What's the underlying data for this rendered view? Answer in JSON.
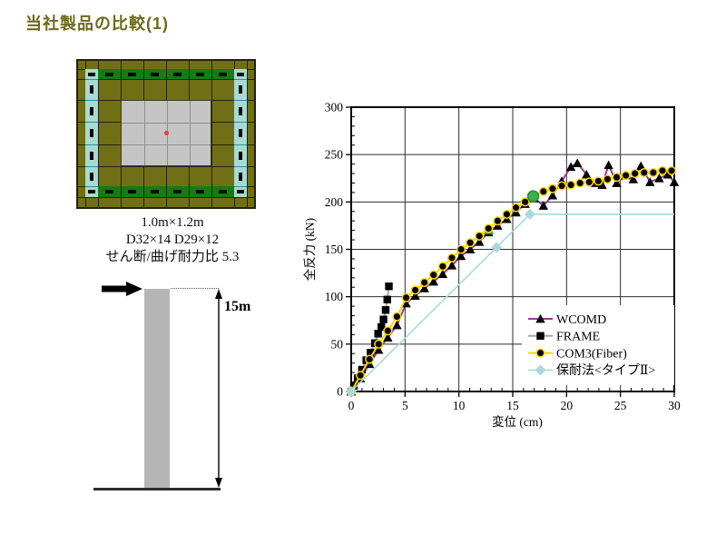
{
  "slide": {
    "title": "当社製品の比較(1)",
    "title_color": "#6b6b1a"
  },
  "section_figure": {
    "caption_lines": [
      "1.0m×1.2m",
      "D32×14 D29×12",
      "せん断/曲げ耐力比 5.3"
    ],
    "colors": {
      "olive": "#706f15",
      "green": "#157c12",
      "cyan": "#a7dad3",
      "core_gray": "#c5c5c5",
      "grid": "#23230c",
      "core_grid": "#8f8f8f",
      "strip_divider_green": "#0d2b08",
      "strip_divider_teal": "#2f9488",
      "rebar": "#000000",
      "dot_red": "#f03c32"
    },
    "hoop_bar_count": 6,
    "side_bar_count": 5
  },
  "column_figure": {
    "height_label": "15m",
    "column_color": "#b5b5b5",
    "line_color": "#000000"
  },
  "chart_data": {
    "type": "line",
    "title": "",
    "xlabel": "変位 (cm)",
    "ylabel": "全反力 (kN)",
    "xlim": [
      0,
      30
    ],
    "ylim": [
      0,
      300
    ],
    "x_ticks": [
      0,
      5,
      10,
      15,
      20,
      25,
      30
    ],
    "y_ticks": [
      0,
      50,
      100,
      150,
      200,
      250,
      300
    ],
    "x_major_tick": 5,
    "y_major_tick": 50,
    "x_minor_tick": 1,
    "y_minor_tick": 10,
    "grid": true,
    "legend_position": "inside lower right",
    "series": [
      {
        "name": "WCOMD",
        "color": "#943b96",
        "marker": "triangle",
        "marker_color": "#000000",
        "marker_size": 5.2,
        "width": 2,
        "points": [
          [
            0,
            0
          ],
          [
            0.85,
            14
          ],
          [
            1.7,
            29
          ],
          [
            2.55,
            44
          ],
          [
            3.4,
            57
          ],
          [
            4.25,
            70
          ],
          [
            5.1,
            93
          ],
          [
            5.95,
            101
          ],
          [
            6.8,
            109
          ],
          [
            7.65,
            116
          ],
          [
            8.5,
            124
          ],
          [
            9.35,
            133
          ],
          [
            10.2,
            143
          ],
          [
            11.05,
            150
          ],
          [
            11.9,
            158
          ],
          [
            12.75,
            168
          ],
          [
            13.6,
            175
          ],
          [
            14.45,
            182
          ],
          [
            15.3,
            189
          ],
          [
            16.15,
            198
          ],
          [
            17.0,
            204
          ],
          [
            17.85,
            196
          ],
          [
            18.7,
            207
          ],
          [
            19.55,
            222
          ],
          [
            20.4,
            237
          ],
          [
            21.0,
            241
          ],
          [
            21.85,
            229
          ],
          [
            22.7,
            220
          ],
          [
            23.3,
            218
          ],
          [
            23.9,
            239
          ],
          [
            24.65,
            220
          ],
          [
            25.5,
            228
          ],
          [
            26.2,
            224
          ],
          [
            26.9,
            238
          ],
          [
            27.75,
            221
          ],
          [
            28.6,
            225
          ],
          [
            29.4,
            229
          ],
          [
            30,
            221
          ]
        ]
      },
      {
        "name": "FRAME",
        "color": "#a8a8a8",
        "marker": "square",
        "marker_color": "#000000",
        "marker_size": 4.2,
        "width": 2,
        "points": [
          [
            0,
            0
          ],
          [
            0.25,
            6
          ],
          [
            0.6,
            14
          ],
          [
            1.0,
            23
          ],
          [
            1.4,
            33
          ],
          [
            1.8,
            41
          ],
          [
            2.2,
            51
          ],
          [
            2.5,
            61
          ],
          [
            2.8,
            68
          ],
          [
            3.0,
            76
          ],
          [
            3.2,
            86
          ],
          [
            3.35,
            97
          ],
          [
            3.5,
            111
          ]
        ]
      },
      {
        "name": "COM3(Fiber)",
        "color": "#ffd400",
        "marker": "circle",
        "marker_color": "#000000",
        "marker_size": 4.3,
        "width": 2,
        "points": [
          [
            0,
            0
          ],
          [
            0.85,
            17
          ],
          [
            1.7,
            34
          ],
          [
            2.55,
            50
          ],
          [
            3.4,
            64
          ],
          [
            4.25,
            79
          ],
          [
            5.1,
            99
          ],
          [
            5.95,
            107
          ],
          [
            6.8,
            115
          ],
          [
            7.65,
            123
          ],
          [
            8.5,
            132
          ],
          [
            9.35,
            141
          ],
          [
            10.2,
            150
          ],
          [
            11.05,
            157
          ],
          [
            11.9,
            164
          ],
          [
            12.75,
            172
          ],
          [
            13.6,
            180
          ],
          [
            14.45,
            187
          ],
          [
            15.3,
            194
          ],
          [
            16.15,
            200
          ],
          [
            16.9,
            206
          ],
          [
            17.85,
            211
          ],
          [
            18.7,
            214
          ],
          [
            19.55,
            217
          ],
          [
            20.4,
            218
          ],
          [
            21.25,
            220
          ],
          [
            22.1,
            221
          ],
          [
            22.95,
            222
          ],
          [
            23.8,
            224
          ],
          [
            24.65,
            226
          ],
          [
            25.5,
            228
          ],
          [
            26.35,
            230
          ],
          [
            27.2,
            231
          ],
          [
            28.05,
            231
          ],
          [
            28.9,
            233
          ],
          [
            29.75,
            233
          ]
        ]
      },
      {
        "name": "保耐法<タイプⅡ>",
        "color": "#a9d9e0",
        "marker": "diamond",
        "marker_color": "#a9d9e0",
        "marker_size": 6,
        "width": 1.6,
        "points": [
          [
            0,
            0
          ],
          [
            16.6,
            187
          ],
          [
            30,
            187
          ]
        ],
        "marker_points": [
          [
            0,
            0
          ],
          [
            13.5,
            152
          ],
          [
            16.6,
            187
          ]
        ]
      }
    ],
    "highlights": [
      {
        "shape": "circle",
        "color": "#3cb04c",
        "stroke": "#2a8f35",
        "size": 6,
        "point": [
          16.9,
          206
        ]
      },
      {
        "shape": "triangle",
        "color": "#3cb04c",
        "stroke": "none",
        "size": 6,
        "point": [
          12.75,
          171
        ]
      }
    ],
    "draw_order": [
      "s0",
      "s1",
      "h1",
      "s2",
      "h0",
      "s3"
    ]
  }
}
